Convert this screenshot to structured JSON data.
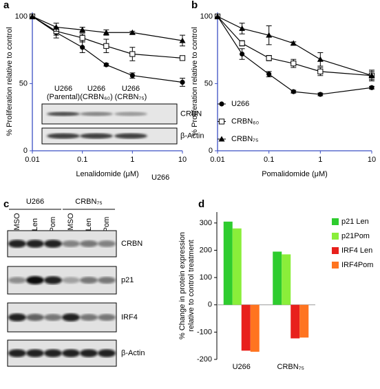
{
  "chart_data": [
    {
      "type": "line",
      "panel": "a",
      "xlabel": "Lenalidomide (μM)",
      "ylabel": "% Proliferation relative to control",
      "note": "U266",
      "xscale": "log",
      "x": [
        0.01,
        0.03,
        0.1,
        0.3,
        1,
        10
      ],
      "xlim": [
        0.01,
        10
      ],
      "xticks": [
        0.01,
        0.1,
        1,
        10
      ],
      "ylim": [
        0,
        103
      ],
      "yticks": [
        0,
        50,
        100
      ],
      "grid": false,
      "axis_color": "#3b4fc4",
      "series": [
        {
          "name": "U266",
          "marker": "circle",
          "color": "#000000",
          "values": [
            100,
            88,
            77,
            64,
            56,
            51
          ],
          "errors": [
            0,
            4,
            4,
            1,
            2,
            3
          ]
        },
        {
          "name": "CRBN₆₀",
          "marker": "square-open",
          "color": "#000000",
          "values": [
            100,
            89,
            84,
            78,
            72,
            69
          ],
          "errors": [
            0,
            3,
            3,
            5,
            5,
            1
          ]
        },
        {
          "name": "CRBN₇₅",
          "marker": "triangle",
          "color": "#000000",
          "values": [
            100,
            92,
            90,
            88,
            88,
            82
          ],
          "errors": [
            0,
            3,
            2,
            2,
            1,
            4
          ]
        }
      ],
      "inset": {
        "columns": [
          [
            "U266",
            "(Parental)"
          ],
          [
            "U266",
            "(CRBN₆₀)"
          ],
          [
            "U266",
            "(CRBN₇₅)"
          ]
        ],
        "rows": [
          "CRBN",
          "β-Actin"
        ]
      }
    },
    {
      "type": "line",
      "panel": "b",
      "xlabel": "Pomalidomide (μM)",
      "ylabel": "% Proliferation relative to control",
      "xscale": "log",
      "x": [
        0.01,
        0.03,
        0.1,
        0.3,
        1,
        10
      ],
      "xlim": [
        0.01,
        10
      ],
      "xticks": [
        0.01,
        0.1,
        1,
        10
      ],
      "ylim": [
        0,
        103
      ],
      "yticks": [
        0,
        50,
        100
      ],
      "grid": false,
      "axis_color": "#3b4fc4",
      "legend": "lower left",
      "series": [
        {
          "name": "U266",
          "marker": "circle",
          "color": "#000000",
          "values": [
            100,
            72,
            57,
            44,
            42,
            47
          ],
          "errors": [
            0,
            4,
            2,
            1,
            1,
            1
          ]
        },
        {
          "name": "CRBN₆₀",
          "marker": "square-open",
          "color": "#000000",
          "values": [
            100,
            80,
            69,
            65,
            59,
            56
          ],
          "errors": [
            0,
            2,
            2,
            3,
            3,
            3
          ]
        },
        {
          "name": "CRBN₇₅",
          "marker": "triangle",
          "color": "#000000",
          "values": [
            100,
            91,
            86,
            80,
            68,
            56
          ],
          "errors": [
            0,
            4,
            7,
            1,
            5,
            4
          ]
        }
      ]
    },
    {
      "type": "bar",
      "panel": "d",
      "ylabel": [
        "% Change in protein expression",
        "relative to control treatment"
      ],
      "categories": [
        "U266",
        "CRBN₇₅"
      ],
      "ylim": [
        -200,
        340
      ],
      "yticks": [
        -200,
        -100,
        0,
        100,
        200,
        300
      ],
      "grid": false,
      "legend": "upper right",
      "series": [
        {
          "name": "p21 Len",
          "color": "#2ecc2e",
          "values": [
            305,
            195
          ]
        },
        {
          "name": "p21Pom",
          "color": "#8aee3a",
          "values": [
            280,
            185
          ]
        },
        {
          "name": "IRF4 Len",
          "color": "#e8201c",
          "values": [
            -168,
            -123
          ]
        },
        {
          "name": "IRF4Pom",
          "color": "#ff7420",
          "values": [
            -172,
            -120
          ]
        }
      ]
    }
  ],
  "blot": {
    "panel": "c",
    "groups": [
      "U266",
      "CRBN₇₅"
    ],
    "lanes": [
      "DMSO",
      "Len",
      "Pom",
      "DMSO",
      "Len",
      "Pom"
    ],
    "rows": [
      "CRBN",
      "p21",
      "IRF4",
      "β-Actin"
    ]
  }
}
